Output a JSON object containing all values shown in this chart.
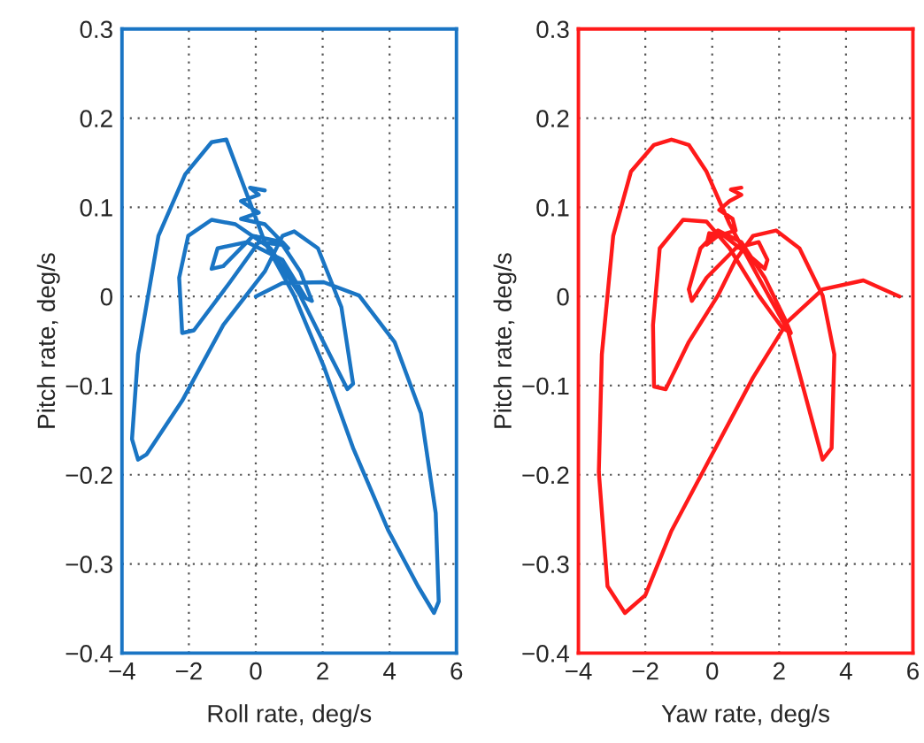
{
  "chart_data": [
    {
      "type": "line",
      "xlabel": "Roll rate, deg/s",
      "ylabel": "Pitch rate, deg/s",
      "xlim": [
        -4,
        6
      ],
      "ylim": [
        -0.4,
        0.3
      ],
      "xticks": [
        -4,
        -2,
        0,
        2,
        4,
        6
      ],
      "yticks": [
        -0.4,
        -0.3,
        -0.2,
        -0.1,
        0,
        0.1,
        0.2,
        0.3
      ],
      "grid": true,
      "line_style": "solid",
      "marker": "none",
      "series": [
        {
          "color": "#1a75c4",
          "x": [
            0.0,
            0.8,
            2.03,
            3.09,
            4.15,
            4.94,
            5.38,
            5.47,
            5.33,
            4.85,
            3.97,
            2.91,
            2.03,
            1.15,
            0.27,
            -0.26,
            -0.88,
            -1.32,
            -2.11,
            -2.91,
            -3.52,
            -3.7,
            -3.52,
            -3.26,
            -2.2,
            -0.97,
            0.27,
            0.8,
            1.15,
            1.86,
            2.56,
            2.91,
            2.74,
            2.21,
            1.33,
            0.44,
            -0.61,
            -1.32,
            -2.02,
            -2.29,
            -2.2,
            -1.85,
            -0.79,
            0.09,
            0.8,
            1.33,
            1.68,
            1.5,
            0.8,
            -0.26,
            -1.14,
            -1.32,
            -0.97,
            -0.08,
            0.8,
            0.97,
            0.27,
            -0.44,
            0.09,
            -0.44,
            0.09,
            -0.17,
            0.27
          ],
          "values": [
            0.0,
            0.015,
            0.016,
            0.001,
            -0.051,
            -0.131,
            -0.243,
            -0.342,
            -0.355,
            -0.325,
            -0.263,
            -0.17,
            -0.078,
            0.001,
            0.061,
            0.114,
            0.176,
            0.173,
            0.137,
            0.068,
            -0.065,
            -0.16,
            -0.183,
            -0.177,
            -0.117,
            -0.032,
            0.028,
            0.068,
            0.073,
            0.054,
            -0.012,
            -0.098,
            -0.104,
            -0.065,
            0.001,
            0.054,
            0.081,
            0.086,
            0.068,
            0.021,
            -0.041,
            -0.038,
            0.015,
            0.061,
            0.058,
            0.028,
            -0.005,
            -0.002,
            0.041,
            0.061,
            0.054,
            0.031,
            0.034,
            0.068,
            0.061,
            0.054,
            0.081,
            0.087,
            0.094,
            0.107,
            0.114,
            0.122,
            0.119
          ]
        }
      ]
    },
    {
      "type": "line",
      "xlabel": "Yaw rate, deg/s",
      "ylabel": "Pitch rate, deg/s",
      "xlim": [
        -4,
        6
      ],
      "ylim": [
        -0.4,
        0.3
      ],
      "xticks": [
        -4,
        -2,
        0,
        2,
        4,
        6
      ],
      "yticks": [
        -0.4,
        -0.3,
        -0.2,
        -0.1,
        0,
        0.1,
        0.2,
        0.3
      ],
      "grid": true,
      "line_style": "solid",
      "marker": "none",
      "series": [
        {
          "color": "#ff1a1a",
          "x": [
            5.6,
            4.52,
            3.3,
            2.26,
            1.22,
            0.0,
            -1.22,
            -2.0,
            -2.61,
            -3.13,
            -3.39,
            -3.3,
            -2.96,
            -2.43,
            -1.74,
            -1.22,
            -0.7,
            -0.17,
            0.52,
            1.39,
            2.26,
            3.3,
            3.57,
            3.65,
            3.3,
            2.61,
            1.91,
            1.22,
            0.7,
            0.17,
            -0.7,
            -1.39,
            -1.74,
            -1.77,
            -1.57,
            -0.87,
            -0.17,
            0.52,
            1.39,
            2.09,
            2.35,
            2.17,
            1.57,
            0.87,
            0.17,
            -0.35,
            -0.7,
            -0.61,
            -0.17,
            0.7,
            1.39,
            1.65,
            1.57,
            1.04,
            0.35,
            -0.09,
            -0.17,
            0.17,
            0.7,
            0.61,
            0.21,
            0.52,
            0.87,
            0.56,
            0.87
          ],
          "values": [
            0.0,
            0.018,
            0.008,
            -0.028,
            -0.091,
            -0.177,
            -0.263,
            -0.335,
            -0.355,
            -0.325,
            -0.197,
            -0.065,
            0.068,
            0.14,
            0.17,
            0.176,
            0.17,
            0.14,
            0.081,
            0.021,
            -0.038,
            -0.183,
            -0.17,
            -0.065,
            0.001,
            0.054,
            0.074,
            0.068,
            0.041,
            0.001,
            -0.051,
            -0.104,
            -0.101,
            -0.032,
            0.054,
            0.086,
            0.084,
            0.054,
            0.001,
            -0.035,
            -0.041,
            -0.025,
            0.021,
            0.061,
            0.074,
            0.054,
            0.008,
            -0.005,
            0.021,
            0.054,
            0.061,
            0.041,
            0.031,
            0.048,
            0.068,
            0.071,
            0.058,
            0.068,
            0.074,
            0.087,
            0.097,
            0.107,
            0.114,
            0.12,
            0.122
          ]
        }
      ]
    }
  ]
}
